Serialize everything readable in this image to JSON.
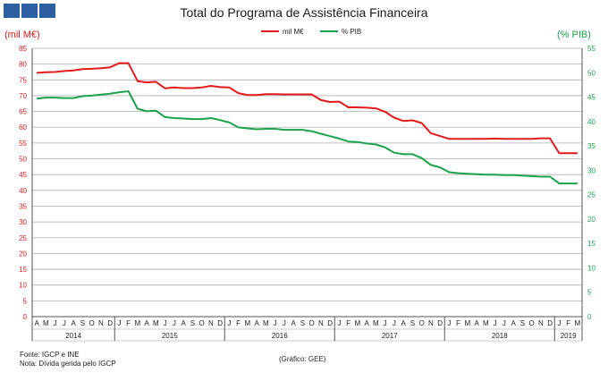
{
  "header": {
    "title": "Total do Programa de Assistência Financeira"
  },
  "logo": {
    "icon": "institution-logo-squares",
    "color": "#2f5fa3"
  },
  "axes": {
    "left_unit": "(mil M€)",
    "right_unit": "(% PIB)"
  },
  "footer": {
    "source": "Fonte: IGCP e INE",
    "note": "Nota: Dívida gerida pelo IGCP",
    "credit": "(Gráfico: GEE)"
  },
  "colors": {
    "eur": "#e31a1a",
    "gdp": "#1aa34a",
    "grid": "#b0b0b0"
  },
  "chart_data": {
    "type": "line",
    "title": "Total do Programa de Assistência Financeira",
    "ylabel_left": "(mil M€)",
    "ylabel_right": "(% PIB)",
    "ylim_left": [
      0,
      85
    ],
    "ylim_right": [
      0,
      55
    ],
    "yticks_left": [
      0,
      5,
      10,
      15,
      20,
      25,
      30,
      35,
      40,
      45,
      50,
      55,
      60,
      65,
      70,
      75,
      80,
      85
    ],
    "yticks_right": [
      0,
      5,
      10,
      15,
      20,
      25,
      30,
      35,
      40,
      45,
      50,
      55
    ],
    "grid": "horizontal",
    "legend_position": "top-center",
    "months": [
      "A",
      "M",
      "J",
      "J",
      "A",
      "S",
      "O",
      "N",
      "D",
      "J",
      "F",
      "M",
      "A",
      "M",
      "J",
      "J",
      "A",
      "S",
      "O",
      "N",
      "D",
      "J",
      "F",
      "M",
      "A",
      "M",
      "J",
      "J",
      "A",
      "S",
      "O",
      "N",
      "D",
      "J",
      "F",
      "M",
      "A",
      "M",
      "J",
      "J",
      "A",
      "S",
      "O",
      "N",
      "D",
      "J",
      "F",
      "M",
      "A",
      "M",
      "J",
      "J",
      "A",
      "S",
      "O",
      "N",
      "D",
      "J",
      "F",
      "M"
    ],
    "years": [
      {
        "label": "2014",
        "start": 0,
        "span": 9
      },
      {
        "label": "2015",
        "start": 9,
        "span": 12
      },
      {
        "label": "2016",
        "start": 21,
        "span": 12
      },
      {
        "label": "2017",
        "start": 33,
        "span": 12
      },
      {
        "label": "2018",
        "start": 45,
        "span": 12
      },
      {
        "label": "2019",
        "start": 57,
        "span": 3
      }
    ],
    "series": [
      {
        "name": "mil M€",
        "axis": "left",
        "values": [
          77.2,
          77.4,
          77.5,
          77.8,
          78.0,
          78.4,
          78.5,
          78.7,
          79.0,
          80.3,
          80.3,
          74.6,
          74.2,
          74.4,
          72.3,
          72.6,
          72.4,
          72.4,
          72.6,
          73.1,
          72.7,
          72.6,
          70.8,
          70.2,
          70.2,
          70.5,
          70.5,
          70.4,
          70.4,
          70.4,
          70.4,
          68.6,
          68.0,
          68.1,
          66.3,
          66.3,
          66.2,
          66.0,
          64.9,
          63.0,
          62.0,
          62.2,
          61.3,
          58.1,
          57.2,
          56.3,
          56.3,
          56.3,
          56.3,
          56.3,
          56.4,
          56.3,
          56.3,
          56.3,
          56.3,
          56.5,
          56.5,
          51.8,
          51.8,
          51.8
        ]
      },
      {
        "name": "% PIB",
        "axis": "right",
        "values": [
          44.7,
          44.9,
          44.9,
          44.8,
          44.8,
          45.2,
          45.3,
          45.5,
          45.7,
          46.0,
          46.2,
          42.6,
          42.1,
          42.2,
          40.9,
          40.7,
          40.6,
          40.5,
          40.5,
          40.7,
          40.3,
          39.8,
          38.8,
          38.6,
          38.4,
          38.5,
          38.5,
          38.3,
          38.3,
          38.3,
          38.0,
          37.5,
          37.0,
          36.5,
          35.9,
          35.8,
          35.5,
          35.3,
          34.7,
          33.6,
          33.3,
          33.3,
          32.5,
          31.1,
          30.6,
          29.6,
          29.4,
          29.3,
          29.2,
          29.1,
          29.1,
          29.0,
          29.0,
          28.9,
          28.8,
          28.7,
          28.7,
          27.3,
          27.3,
          27.3
        ]
      }
    ]
  }
}
